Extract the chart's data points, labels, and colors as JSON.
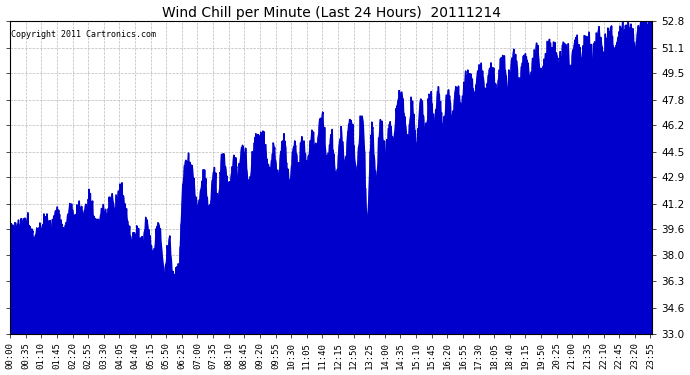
{
  "title": "Wind Chill per Minute (Last 24 Hours)  20111214",
  "copyright": "Copyright 2011 Cartronics.com",
  "line_color": "#0000cd",
  "bg_color": "#ffffff",
  "fill_color": "#0000cd",
  "ylim": [
    33.0,
    52.8
  ],
  "yticks": [
    33.0,
    34.6,
    36.3,
    38.0,
    39.6,
    41.2,
    42.9,
    44.5,
    46.2,
    47.8,
    49.5,
    51.1,
    52.8
  ],
  "tick_interval_minutes": 35,
  "n_minutes": 1440,
  "figsize": [
    6.9,
    3.75
  ],
  "dpi": 100
}
